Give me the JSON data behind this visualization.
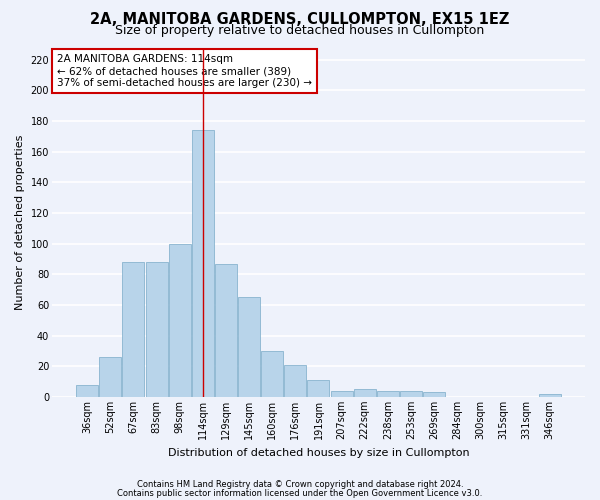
{
  "title": "2A, MANITOBA GARDENS, CULLOMPTON, EX15 1EZ",
  "subtitle": "Size of property relative to detached houses in Cullompton",
  "xlabel": "Distribution of detached houses by size in Cullompton",
  "ylabel": "Number of detached properties",
  "categories": [
    "36sqm",
    "52sqm",
    "67sqm",
    "83sqm",
    "98sqm",
    "114sqm",
    "129sqm",
    "145sqm",
    "160sqm",
    "176sqm",
    "191sqm",
    "207sqm",
    "222sqm",
    "238sqm",
    "253sqm",
    "269sqm",
    "284sqm",
    "300sqm",
    "315sqm",
    "331sqm",
    "346sqm"
  ],
  "values": [
    8,
    26,
    88,
    88,
    100,
    174,
    87,
    65,
    30,
    21,
    11,
    4,
    5,
    4,
    4,
    3,
    0,
    0,
    0,
    0,
    2
  ],
  "bar_color": "#b8d4ea",
  "bar_edge_color": "#7aaac8",
  "highlight_index": 5,
  "highlight_line_color": "#cc0000",
  "annotation_text": "2A MANITOBA GARDENS: 114sqm\n← 62% of detached houses are smaller (389)\n37% of semi-detached houses are larger (230) →",
  "annotation_box_color": "#ffffff",
  "annotation_box_edge_color": "#cc0000",
  "ylim": [
    0,
    228
  ],
  "yticks": [
    0,
    20,
    40,
    60,
    80,
    100,
    120,
    140,
    160,
    180,
    200,
    220
  ],
  "footer_line1": "Contains HM Land Registry data © Crown copyright and database right 2024.",
  "footer_line2": "Contains public sector information licensed under the Open Government Licence v3.0.",
  "background_color": "#eef2fb",
  "grid_color": "#ffffff",
  "title_fontsize": 10.5,
  "subtitle_fontsize": 9,
  "axis_label_fontsize": 8,
  "tick_fontsize": 7,
  "annotation_fontsize": 7.5,
  "footer_fontsize": 6
}
